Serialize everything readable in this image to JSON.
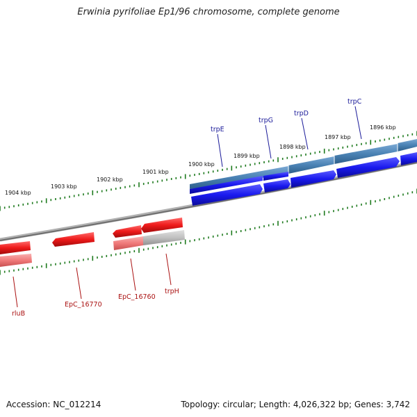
{
  "title": "Erwinia pyrifoliae Ep1/96 chromosome, complete genome",
  "accession_text": "Accession: NC_012214",
  "summary_text": "Topology: circular; Length: 4,026,322 bp; Genes: 3,742",
  "colors": {
    "forward_gene": "#1a1aee",
    "forward_track": "#4a82b4",
    "reverse_gene": "#ee1a1a",
    "reverse_track": "#f07a7a",
    "backbone": "#808080",
    "ticks": "#1e7a1e",
    "forward_label": "#1a1a99",
    "reverse_label": "#aa1111"
  },
  "scale_labels": [
    "1904 kbp",
    "1903 kbp",
    "1902 kbp",
    "1901 kbp",
    "1900 kbp",
    "1899 kbp",
    "1898 kbp",
    "1897 kbp",
    "1896 kbp"
  ],
  "forward_genes": [
    "trpE",
    "trpG",
    "trpD",
    "trpC"
  ],
  "reverse_genes": [
    "rluB",
    "EpC_16770",
    "EpC_16760",
    "trpH"
  ]
}
